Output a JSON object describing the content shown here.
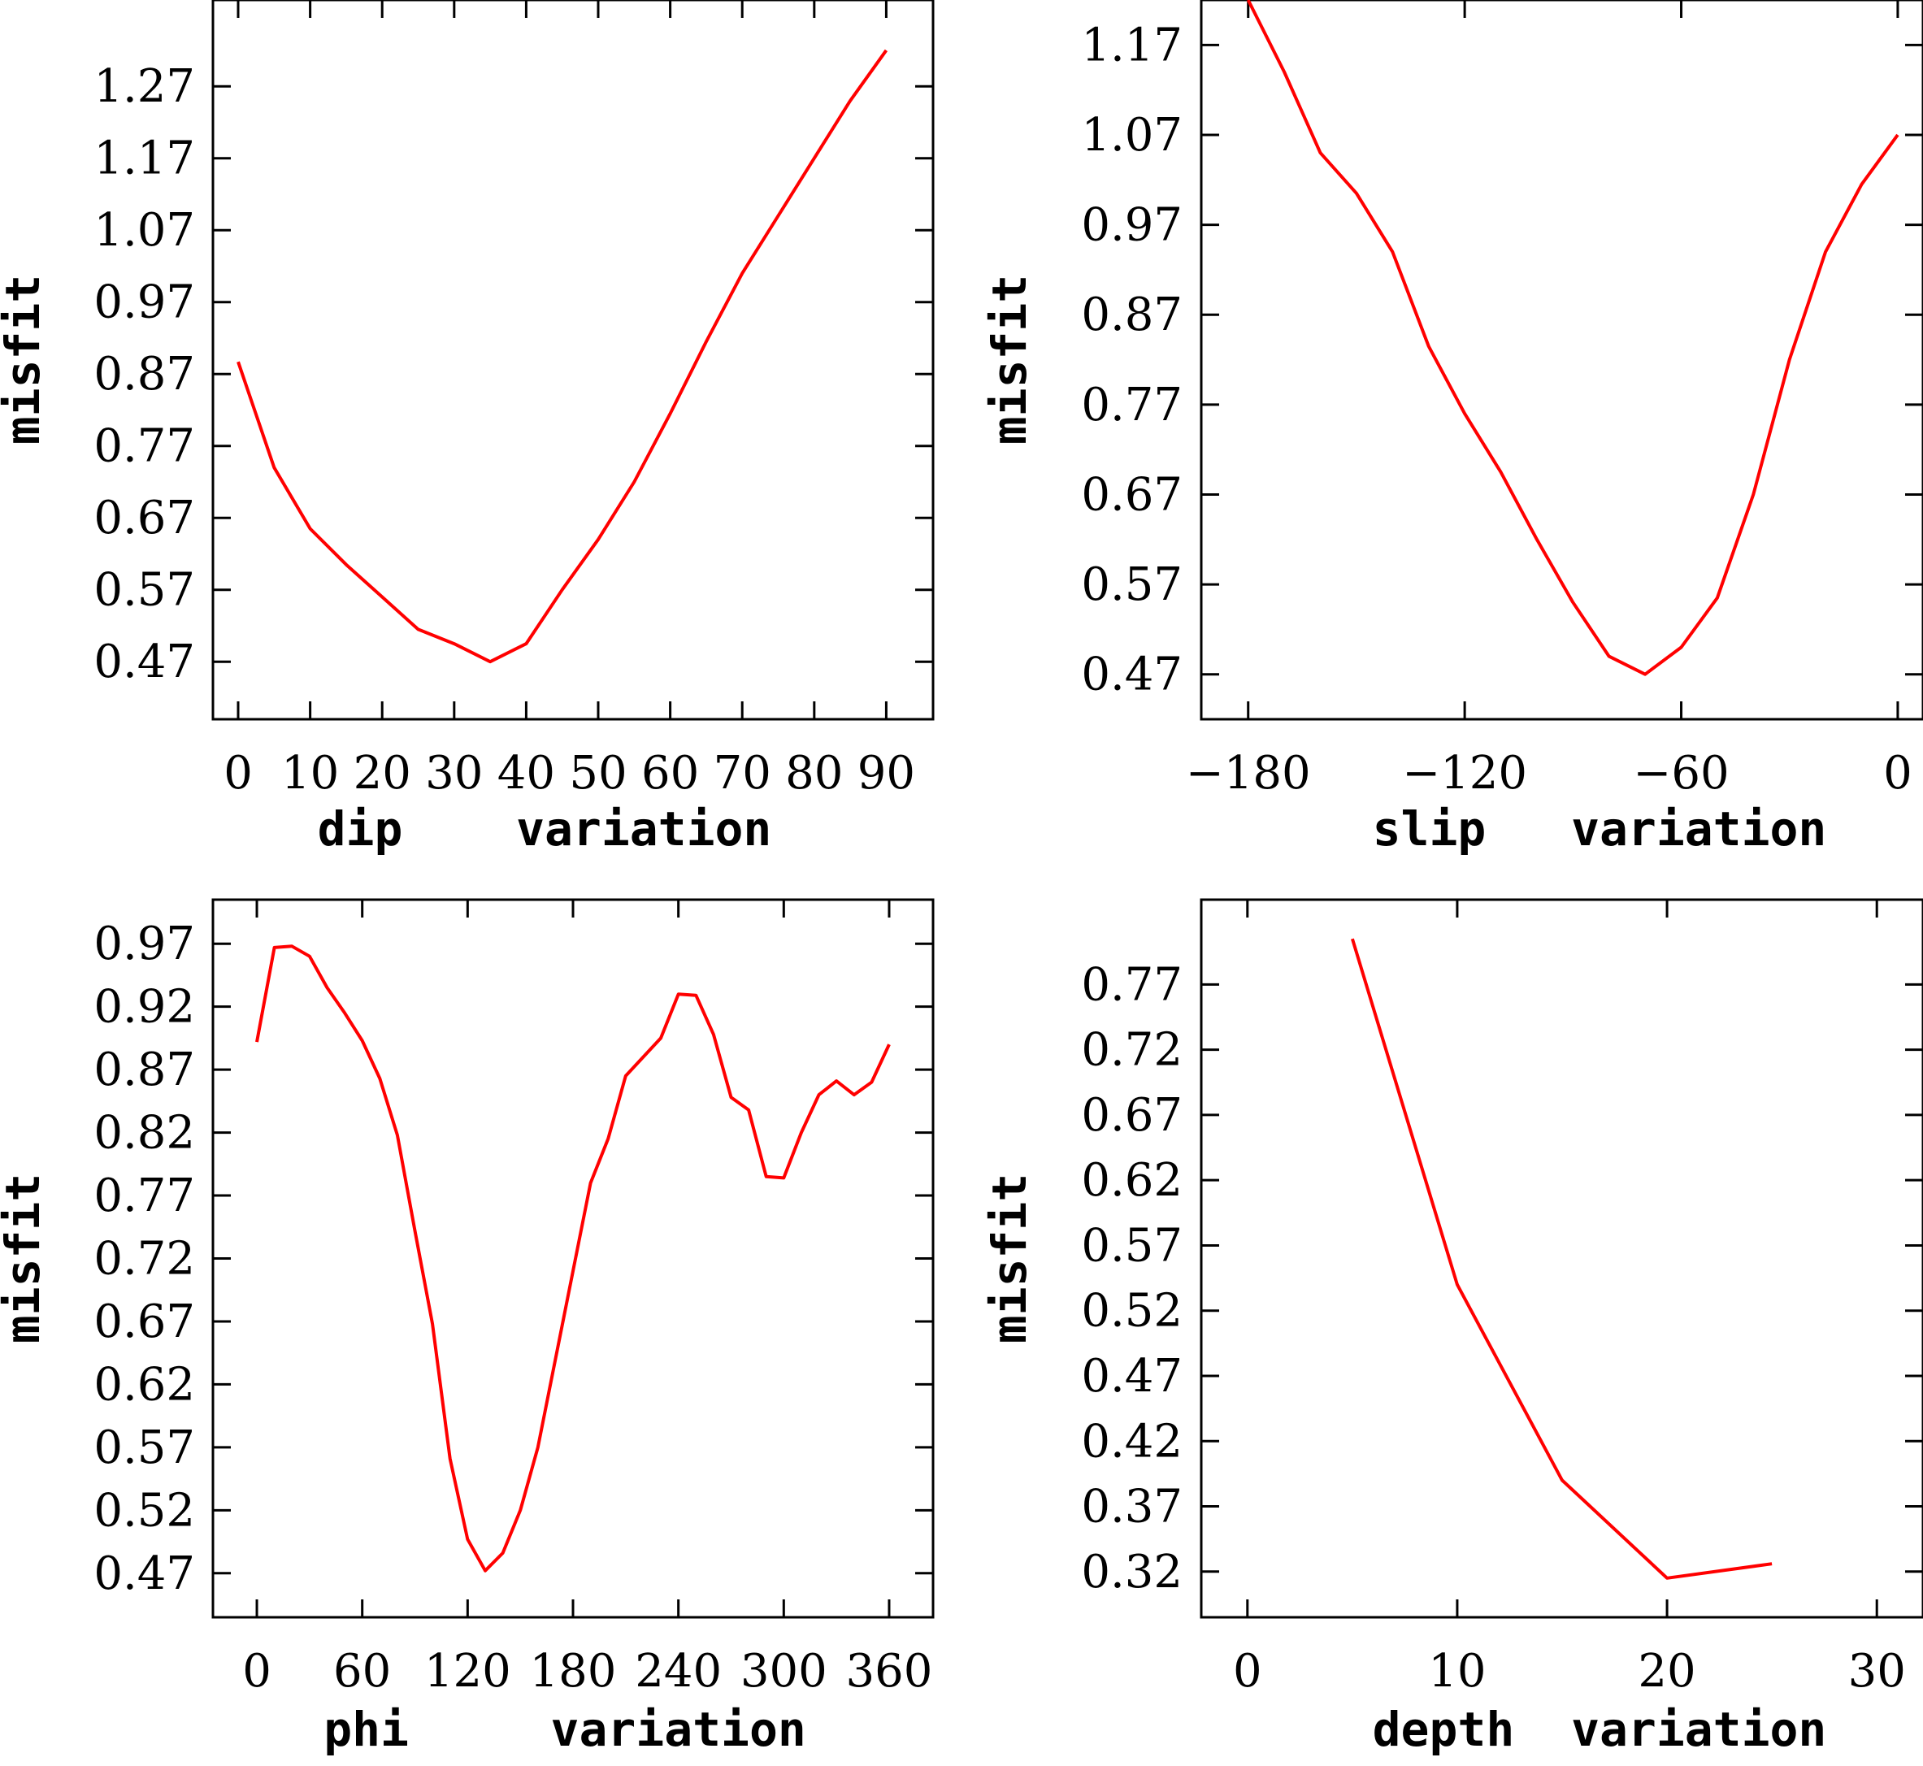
{
  "chart_data": [
    {
      "type": "line",
      "xlabel": "dip    variation",
      "ylabel": "misfit",
      "xlim": [
        -3.5,
        96.5
      ],
      "ylim": [
        0.39,
        1.39
      ],
      "xticks": [
        0,
        10,
        20,
        30,
        40,
        50,
        60,
        70,
        80,
        90
      ],
      "xtick_labels": [
        "0",
        "10",
        "20",
        "30",
        "40",
        "50",
        "60",
        "70",
        "80",
        "90"
      ],
      "yticks": [
        0.47,
        0.57,
        0.67,
        0.77,
        0.87,
        0.97,
        1.07,
        1.17,
        1.27
      ],
      "ytick_labels": [
        "0.47",
        "0.57",
        "0.67",
        "0.77",
        "0.87",
        "0.97",
        "1.07",
        "1.17",
        "1.27"
      ],
      "grid": false,
      "series": [
        {
          "color": "#ff0000",
          "x": [
            0,
            5,
            10,
            15,
            20,
            25,
            30,
            35,
            40,
            45,
            50,
            55,
            60,
            65,
            70,
            75,
            80,
            85,
            90
          ],
          "y": [
            0.887,
            0.74,
            0.655,
            0.605,
            0.56,
            0.515,
            0.495,
            0.47,
            0.495,
            0.57,
            0.64,
            0.72,
            0.815,
            0.915,
            1.01,
            1.09,
            1.17,
            1.25,
            1.32
          ]
        }
      ]
    },
    {
      "type": "line",
      "xlabel": "slip   variation",
      "ylabel": "misfit",
      "xlim": [
        -193,
        7
      ],
      "ylim": [
        0.42,
        1.22
      ],
      "xticks": [
        -180,
        -120,
        -60,
        0
      ],
      "xtick_labels": [
        "−180",
        "−120",
        "−60",
        "0"
      ],
      "yticks": [
        0.47,
        0.57,
        0.67,
        0.77,
        0.87,
        0.97,
        1.07,
        1.17
      ],
      "ytick_labels": [
        "0.47",
        "0.57",
        "0.67",
        "0.77",
        "0.87",
        "0.97",
        "1.07",
        "1.17"
      ],
      "grid": false,
      "series": [
        {
          "color": "#ff0000",
          "x": [
            -180,
            -170,
            -160,
            -150,
            -140,
            -130,
            -120,
            -110,
            -100,
            -90,
            -80,
            -70,
            -60,
            -50,
            -40,
            -30,
            -20,
            -10,
            0
          ],
          "y": [
            1.22,
            1.14,
            1.05,
            1.005,
            0.94,
            0.835,
            0.76,
            0.695,
            0.62,
            0.55,
            0.49,
            0.47,
            0.5,
            0.555,
            0.67,
            0.82,
            0.94,
            1.015,
            1.07
          ]
        }
      ]
    },
    {
      "type": "line",
      "xlabel": "phi     variation",
      "ylabel": "misfit",
      "xlim": [
        -25,
        385
      ],
      "ylim": [
        0.435,
        1.005
      ],
      "xticks": [
        0,
        60,
        120,
        180,
        240,
        300,
        360
      ],
      "xtick_labels": [
        "0",
        "60",
        "120",
        "180",
        "240",
        "300",
        "360"
      ],
      "yticks": [
        0.47,
        0.52,
        0.57,
        0.62,
        0.67,
        0.72,
        0.77,
        0.82,
        0.87,
        0.92,
        0.97
      ],
      "ytick_labels": [
        "0.47",
        "0.52",
        "0.57",
        "0.62",
        "0.67",
        "0.72",
        "0.77",
        "0.82",
        "0.87",
        "0.92",
        "0.97"
      ],
      "grid": false,
      "series": [
        {
          "color": "#ff0000",
          "x": [
            0,
            10,
            20,
            30,
            40,
            50,
            60,
            70,
            80,
            90,
            100,
            110,
            120,
            130,
            140,
            150,
            160,
            170,
            180,
            190,
            200,
            210,
            220,
            230,
            240,
            250,
            260,
            270,
            280,
            290,
            300,
            310,
            320,
            330,
            340,
            350,
            360
          ],
          "y": [
            0.892,
            0.967,
            0.968,
            0.96,
            0.935,
            0.915,
            0.893,
            0.863,
            0.818,
            0.742,
            0.668,
            0.561,
            0.497,
            0.472,
            0.486,
            0.52,
            0.57,
            0.64,
            0.71,
            0.78,
            0.815,
            0.865,
            0.88,
            0.895,
            0.93,
            0.929,
            0.898,
            0.848,
            0.838,
            0.785,
            0.784,
            0.82,
            0.85,
            0.861,
            0.85,
            0.86,
            0.89
          ]
        }
      ]
    },
    {
      "type": "line",
      "xlabel": "depth  variation",
      "ylabel": "misfit",
      "xlim": [
        -2.2,
        32.2
      ],
      "ylim": [
        0.285,
        0.835
      ],
      "xticks": [
        0,
        10,
        20,
        30
      ],
      "xtick_labels": [
        "0",
        "10",
        "20",
        "30"
      ],
      "yticks": [
        0.32,
        0.37,
        0.42,
        0.47,
        0.52,
        0.57,
        0.62,
        0.67,
        0.72,
        0.77
      ],
      "ytick_labels": [
        "0.32",
        "0.37",
        "0.42",
        "0.47",
        "0.52",
        "0.57",
        "0.62",
        "0.67",
        "0.72",
        "0.77"
      ],
      "grid": false,
      "series": [
        {
          "color": "#ff0000",
          "x": [
            5,
            10,
            15,
            20,
            25
          ],
          "y": [
            0.805,
            0.54,
            0.39,
            0.315,
            0.326
          ]
        }
      ]
    }
  ]
}
